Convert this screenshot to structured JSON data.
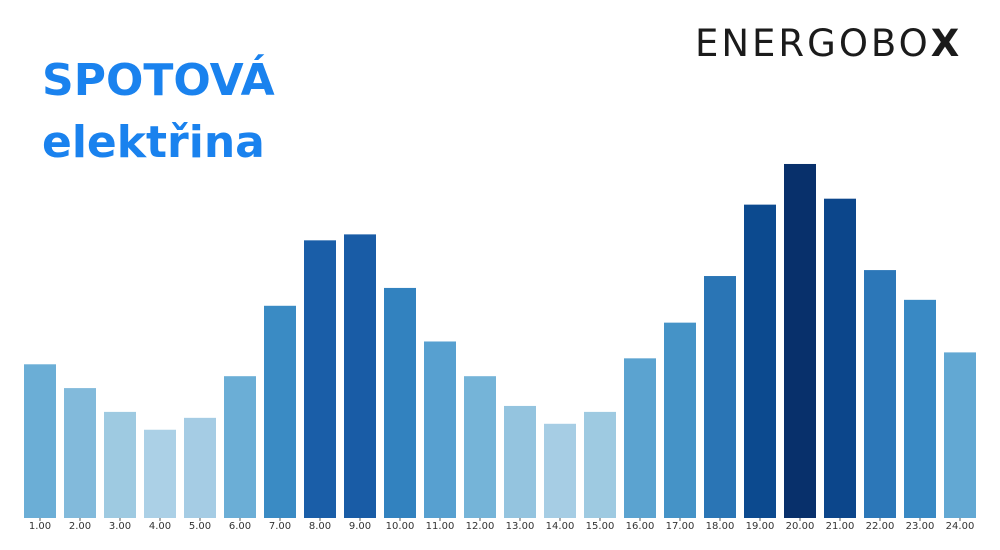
{
  "title": {
    "line1": "SPOTOVÁ",
    "line2": "elektřina"
  },
  "logo": {
    "text": "ENERGOBO",
    "x": "X"
  },
  "chart_data": {
    "type": "bar",
    "categories": [
      "1.00",
      "2.00",
      "3.00",
      "4.00",
      "5.00",
      "6.00",
      "7.00",
      "8.00",
      "9.00",
      "10.00",
      "11.00",
      "12.00",
      "13.00",
      "14.00",
      "15.00",
      "16.00",
      "17.00",
      "18.00",
      "19.00",
      "20.00",
      "21.00",
      "22.00",
      "23.00",
      "24.00"
    ],
    "values": [
      155,
      131,
      107,
      89,
      101,
      143,
      214,
      280,
      286,
      232,
      178,
      143,
      113,
      95,
      107,
      161,
      197,
      244,
      316,
      357,
      322,
      250,
      220,
      167
    ],
    "colors": [
      "#6baed6",
      "#82badb",
      "#9ecae1",
      "#abd0e6",
      "#a5cce4",
      "#6baed6",
      "#3a8bc4",
      "#1a5ea8",
      "#195ca6",
      "#3282bf",
      "#57a0d0",
      "#75b4d8",
      "#94c4df",
      "#a6cde4",
      "#9ecae1",
      "#5ba3d0",
      "#4593c7",
      "#2a75b5",
      "#0c4a8f",
      "#08306b",
      "#0c468b",
      "#2c77b8",
      "#3989c4",
      "#62a8d3"
    ],
    "title": "",
    "xlabel": "",
    "ylabel": "",
    "ylim": [
      0,
      360
    ],
    "grid": false,
    "legend": "none"
  }
}
